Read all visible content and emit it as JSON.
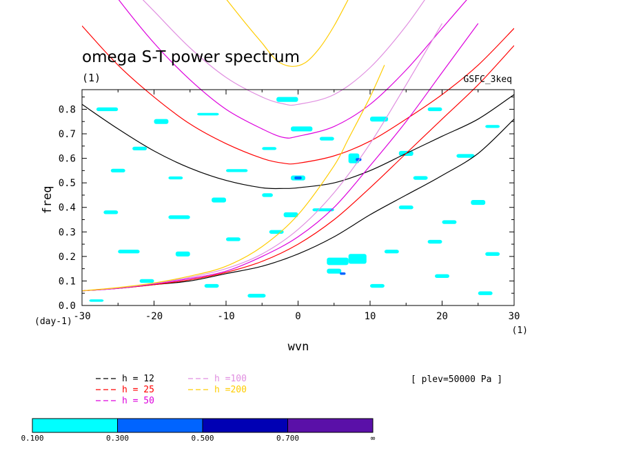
{
  "chart_data": {
    "type": "line",
    "title": "omega S-T power spectrum",
    "subtitle": "(1)",
    "source_label": "GSFC_3keq",
    "annotation": "[ plev=50000 Pa ]",
    "xlabel": "wvn",
    "ylabel": "freq",
    "x_unit": "(1)",
    "y_unit": "(day-1)",
    "xlim": [
      -30,
      30
    ],
    "ylim": [
      0,
      0.88
    ],
    "x_ticks": [
      -30,
      -20,
      -10,
      0,
      10,
      20,
      30
    ],
    "x_tick_labels": [
      "-30",
      "-20",
      "-10",
      "0",
      "10",
      "20",
      "30"
    ],
    "y_ticks": [
      0,
      0.1,
      0.2,
      0.3,
      0.4,
      0.5,
      0.6,
      0.7,
      0.8
    ],
    "y_tick_labels": [
      "0.0",
      "0.1",
      "0.2",
      "0.3",
      "0.4",
      "0.5",
      "0.6",
      "0.7",
      "0.8"
    ],
    "series": [
      {
        "name": "h = 12",
        "color": "#000000",
        "inertia_gravity": [
          [
            -30,
            0.82
          ],
          [
            -25,
            0.72
          ],
          [
            -20,
            0.63
          ],
          [
            -15,
            0.56
          ],
          [
            -10,
            0.51
          ],
          [
            -5,
            0.48
          ],
          [
            -2,
            0.477
          ],
          [
            0,
            0.48
          ],
          [
            5,
            0.5
          ],
          [
            10,
            0.55
          ],
          [
            15,
            0.62
          ],
          [
            20,
            0.69
          ],
          [
            25,
            0.76
          ],
          [
            30,
            0.86
          ]
        ],
        "kelvin": [
          [
            -30,
            0.06
          ],
          [
            -25,
            0.07
          ],
          [
            -20,
            0.085
          ],
          [
            -15,
            0.1
          ],
          [
            -10,
            0.13
          ],
          [
            -5,
            0.16
          ],
          [
            0,
            0.21
          ],
          [
            5,
            0.28
          ],
          [
            10,
            0.37
          ],
          [
            15,
            0.45
          ],
          [
            20,
            0.53
          ],
          [
            25,
            0.62
          ],
          [
            30,
            0.76
          ]
        ]
      },
      {
        "name": "h = 25",
        "color": "#ff0000",
        "inertia_gravity": [
          [
            -30,
            1.14
          ],
          [
            -25,
            0.98
          ],
          [
            -20,
            0.85
          ],
          [
            -15,
            0.74
          ],
          [
            -10,
            0.66
          ],
          [
            -5,
            0.6
          ],
          [
            -2,
            0.58
          ],
          [
            0,
            0.58
          ],
          [
            5,
            0.61
          ],
          [
            10,
            0.67
          ],
          [
            15,
            0.76
          ],
          [
            20,
            0.86
          ],
          [
            25,
            0.98
          ],
          [
            30,
            1.13
          ]
        ],
        "kelvin": [
          [
            -30,
            0.06
          ],
          [
            -25,
            0.07
          ],
          [
            -20,
            0.085
          ],
          [
            -15,
            0.105
          ],
          [
            -10,
            0.135
          ],
          [
            -5,
            0.18
          ],
          [
            0,
            0.25
          ],
          [
            5,
            0.35
          ],
          [
            10,
            0.48
          ],
          [
            15,
            0.62
          ],
          [
            20,
            0.76
          ],
          [
            25,
            0.9
          ],
          [
            30,
            1.06
          ]
        ]
      },
      {
        "name": "h = 50",
        "color": "#dd00dd",
        "inertia_gravity": [
          [
            -30,
            1.45
          ],
          [
            -25,
            1.25
          ],
          [
            -20,
            1.07
          ],
          [
            -15,
            0.92
          ],
          [
            -10,
            0.8
          ],
          [
            -5,
            0.72
          ],
          [
            -2,
            0.685
          ],
          [
            0,
            0.69
          ],
          [
            5,
            0.73
          ],
          [
            10,
            0.82
          ],
          [
            15,
            0.96
          ],
          [
            20,
            1.13
          ],
          [
            25,
            1.3
          ]
        ],
        "kelvin": [
          [
            -30,
            0.06
          ],
          [
            -25,
            0.07
          ],
          [
            -20,
            0.088
          ],
          [
            -15,
            0.11
          ],
          [
            -10,
            0.14
          ],
          [
            -5,
            0.2
          ],
          [
            0,
            0.28
          ],
          [
            5,
            0.4
          ],
          [
            10,
            0.57
          ],
          [
            15,
            0.75
          ],
          [
            20,
            0.95
          ],
          [
            25,
            1.15
          ]
        ]
      },
      {
        "name": "h =100",
        "color": "#e08ee0",
        "inertia_gravity": [
          [
            -25,
            1.35
          ],
          [
            -20,
            1.2
          ],
          [
            -15,
            1.05
          ],
          [
            -10,
            0.93
          ],
          [
            -5,
            0.85
          ],
          [
            -2,
            0.822
          ],
          [
            0,
            0.82
          ],
          [
            5,
            0.86
          ],
          [
            10,
            0.97
          ],
          [
            15,
            1.14
          ],
          [
            20,
            1.35
          ]
        ],
        "kelvin": [
          [
            -30,
            0.06
          ],
          [
            -25,
            0.072
          ],
          [
            -20,
            0.09
          ],
          [
            -15,
            0.115
          ],
          [
            -10,
            0.15
          ],
          [
            -5,
            0.21
          ],
          [
            0,
            0.31
          ],
          [
            5,
            0.46
          ],
          [
            10,
            0.66
          ],
          [
            15,
            0.9
          ],
          [
            20,
            1.15
          ]
        ]
      },
      {
        "name": "h =200",
        "color": "#ffcc00",
        "inertia_gravity": [
          [
            -10,
            1.25
          ],
          [
            -7,
            1.14
          ],
          [
            -5,
            1.07
          ],
          [
            -3,
            1.0
          ],
          [
            -1,
            0.975
          ],
          [
            1,
            0.99
          ],
          [
            3,
            1.05
          ],
          [
            5,
            1.14
          ],
          [
            7,
            1.25
          ]
        ],
        "kelvin": [
          [
            -30,
            0.06
          ],
          [
            -25,
            0.073
          ],
          [
            -20,
            0.092
          ],
          [
            -15,
            0.12
          ],
          [
            -10,
            0.16
          ],
          [
            -5,
            0.24
          ],
          [
            0,
            0.37
          ],
          [
            5,
            0.57
          ],
          [
            7,
            0.68
          ],
          [
            10,
            0.85
          ],
          [
            12,
            0.98
          ]
        ]
      }
    ],
    "shaded_contours": [
      {
        "x": -28,
        "y": 0.8,
        "w": 3,
        "h": 0.015
      },
      {
        "x": -20,
        "y": 0.75,
        "w": 2,
        "h": 0.02
      },
      {
        "x": -14,
        "y": 0.78,
        "w": 3,
        "h": 0.01
      },
      {
        "x": -3,
        "y": 0.84,
        "w": 3,
        "h": 0.02
      },
      {
        "x": -1,
        "y": 0.72,
        "w": 3,
        "h": 0.02
      },
      {
        "x": 10,
        "y": 0.76,
        "w": 2.5,
        "h": 0.02
      },
      {
        "x": 14,
        "y": 0.62,
        "w": 2,
        "h": 0.02
      },
      {
        "x": 7,
        "y": 0.6,
        "w": 1.5,
        "h": 0.04
      },
      {
        "x": -23,
        "y": 0.64,
        "w": 2,
        "h": 0.015
      },
      {
        "x": -10,
        "y": 0.55,
        "w": 3,
        "h": 0.012
      },
      {
        "x": -1,
        "y": 0.52,
        "w": 2,
        "h": 0.02
      },
      {
        "x": 3,
        "y": 0.68,
        "w": 2,
        "h": 0.015
      },
      {
        "x": 22,
        "y": 0.61,
        "w": 2.5,
        "h": 0.015
      },
      {
        "x": -27,
        "y": 0.38,
        "w": 2,
        "h": 0.015
      },
      {
        "x": -18,
        "y": 0.36,
        "w": 3,
        "h": 0.015
      },
      {
        "x": -12,
        "y": 0.43,
        "w": 2,
        "h": 0.02
      },
      {
        "x": -5,
        "y": 0.45,
        "w": 1.5,
        "h": 0.015
      },
      {
        "x": -2,
        "y": 0.37,
        "w": 2,
        "h": 0.02
      },
      {
        "x": 2,
        "y": 0.39,
        "w": 3,
        "h": 0.012
      },
      {
        "x": 14,
        "y": 0.4,
        "w": 2,
        "h": 0.015
      },
      {
        "x": 20,
        "y": 0.34,
        "w": 2,
        "h": 0.015
      },
      {
        "x": 24,
        "y": 0.42,
        "w": 2,
        "h": 0.02
      },
      {
        "x": -25,
        "y": 0.22,
        "w": 3,
        "h": 0.015
      },
      {
        "x": -17,
        "y": 0.21,
        "w": 2,
        "h": 0.02
      },
      {
        "x": -10,
        "y": 0.27,
        "w": 2,
        "h": 0.015
      },
      {
        "x": -4,
        "y": 0.3,
        "w": 2,
        "h": 0.015
      },
      {
        "x": 4,
        "y": 0.18,
        "w": 3,
        "h": 0.03
      },
      {
        "x": 7,
        "y": 0.19,
        "w": 2.5,
        "h": 0.04
      },
      {
        "x": 12,
        "y": 0.22,
        "w": 2,
        "h": 0.015
      },
      {
        "x": 18,
        "y": 0.26,
        "w": 2,
        "h": 0.015
      },
      {
        "x": 26,
        "y": 0.21,
        "w": 2,
        "h": 0.015
      },
      {
        "x": -22,
        "y": 0.1,
        "w": 2,
        "h": 0.015
      },
      {
        "x": -13,
        "y": 0.08,
        "w": 2,
        "h": 0.015
      },
      {
        "x": -7,
        "y": 0.04,
        "w": 2.5,
        "h": 0.015
      },
      {
        "x": 4,
        "y": 0.14,
        "w": 2,
        "h": 0.02
      },
      {
        "x": 10,
        "y": 0.08,
        "w": 2,
        "h": 0.015
      },
      {
        "x": 19,
        "y": 0.12,
        "w": 2,
        "h": 0.015
      },
      {
        "x": 25,
        "y": 0.05,
        "w": 2,
        "h": 0.015
      },
      {
        "x": -29,
        "y": 0.02,
        "w": 2,
        "h": 0.01
      },
      {
        "x": -18,
        "y": 0.52,
        "w": 2,
        "h": 0.012
      },
      {
        "x": -5,
        "y": 0.64,
        "w": 2,
        "h": 0.012
      },
      {
        "x": 18,
        "y": 0.8,
        "w": 2,
        "h": 0.015
      },
      {
        "x": 26,
        "y": 0.73,
        "w": 2,
        "h": 0.012
      },
      {
        "x": -26,
        "y": 0.55,
        "w": 2,
        "h": 0.015
      },
      {
        "x": 16,
        "y": 0.52,
        "w": 2,
        "h": 0.015
      }
    ],
    "dark_contours": [
      {
        "x": -0.5,
        "y": 0.52,
        "w": 1.0,
        "h": 0.012
      },
      {
        "x": 8,
        "y": 0.595,
        "w": 0.8,
        "h": 0.012
      },
      {
        "x": 5.8,
        "y": 0.13,
        "w": 0.8,
        "h": 0.01
      }
    ],
    "legend_placement": "bottom-left",
    "colorbar": {
      "colors": [
        "#00ffff",
        "#0064ff",
        "#0000b4",
        "#5a10a8"
      ],
      "labels": [
        "0.100",
        "0.300",
        "0.500",
        "0.700",
        "∞"
      ]
    }
  }
}
